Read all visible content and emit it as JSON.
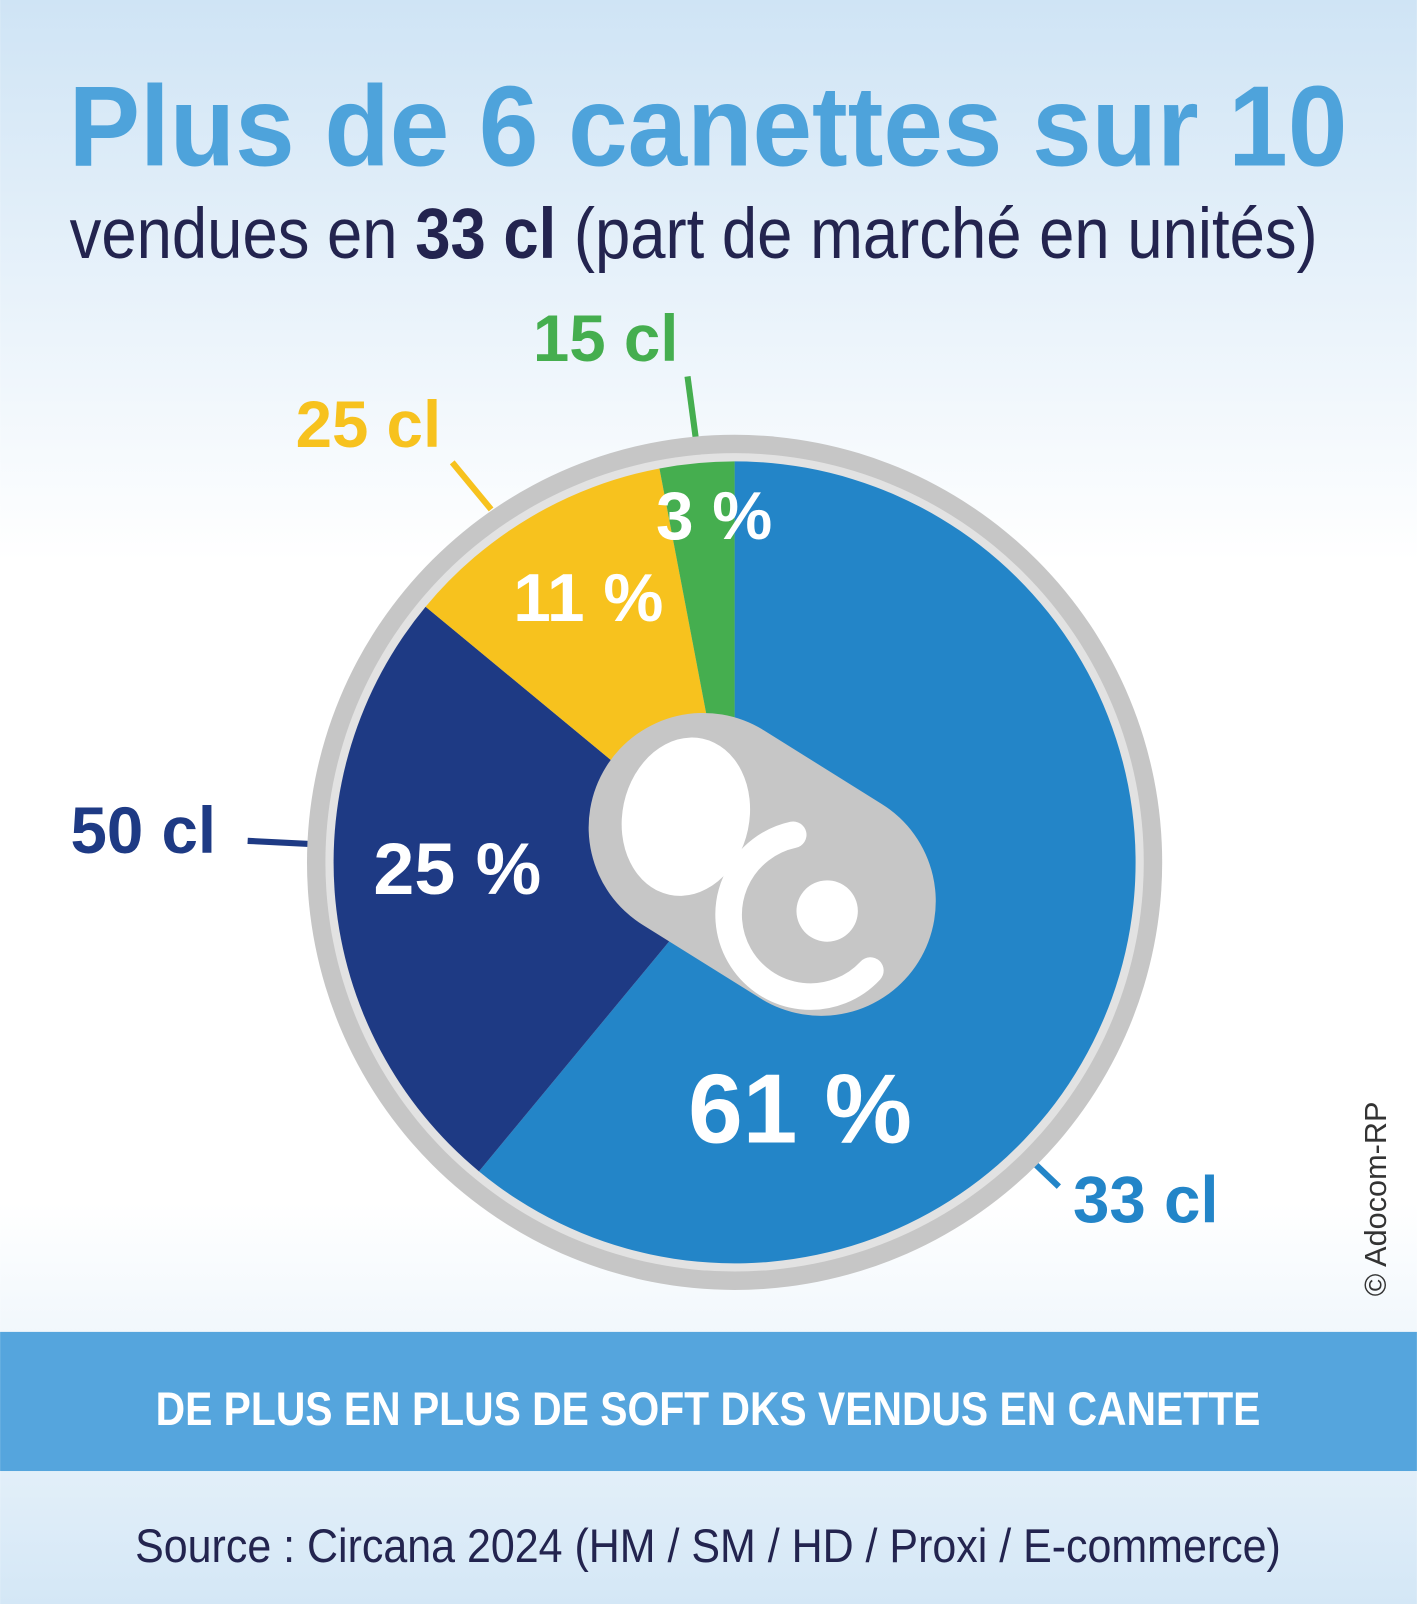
{
  "title": "Plus de 6 canettes sur 10",
  "subtitle": {
    "pre": "vendues en ",
    "bold": "33 cl",
    "post": " (part de marché en unités)"
  },
  "banner": "DE PLUS EN PLUS DE SOFT DKS VENDUS EN CANETTE",
  "source": "Source : Circana 2024 (HM / SM / HD / Proxi / E-commerce)",
  "credit": "© Adocom-RP",
  "colors": {
    "title": "#4ea3db",
    "text": "#23244f",
    "banner": "#55a5dd",
    "ring": "#c6c6c6"
  },
  "chart_data": {
    "type": "pie",
    "title": "Plus de 6 canettes sur 10 vendues en 33 cl (part de marché en unités)",
    "start": "12 o'clock, clockwise",
    "slices": [
      {
        "label": "33 cl",
        "value": 61,
        "value_label": "61 %",
        "color": "#2385c8"
      },
      {
        "label": "50 cl",
        "value": 25,
        "value_label": "25 %",
        "color": "#1e3a84"
      },
      {
        "label": "25 cl",
        "value": 11,
        "value_label": "11 %",
        "color": "#f7c21e"
      },
      {
        "label": "15 cl",
        "value": 3,
        "value_label": "3 %",
        "color": "#45ae4f"
      }
    ]
  }
}
